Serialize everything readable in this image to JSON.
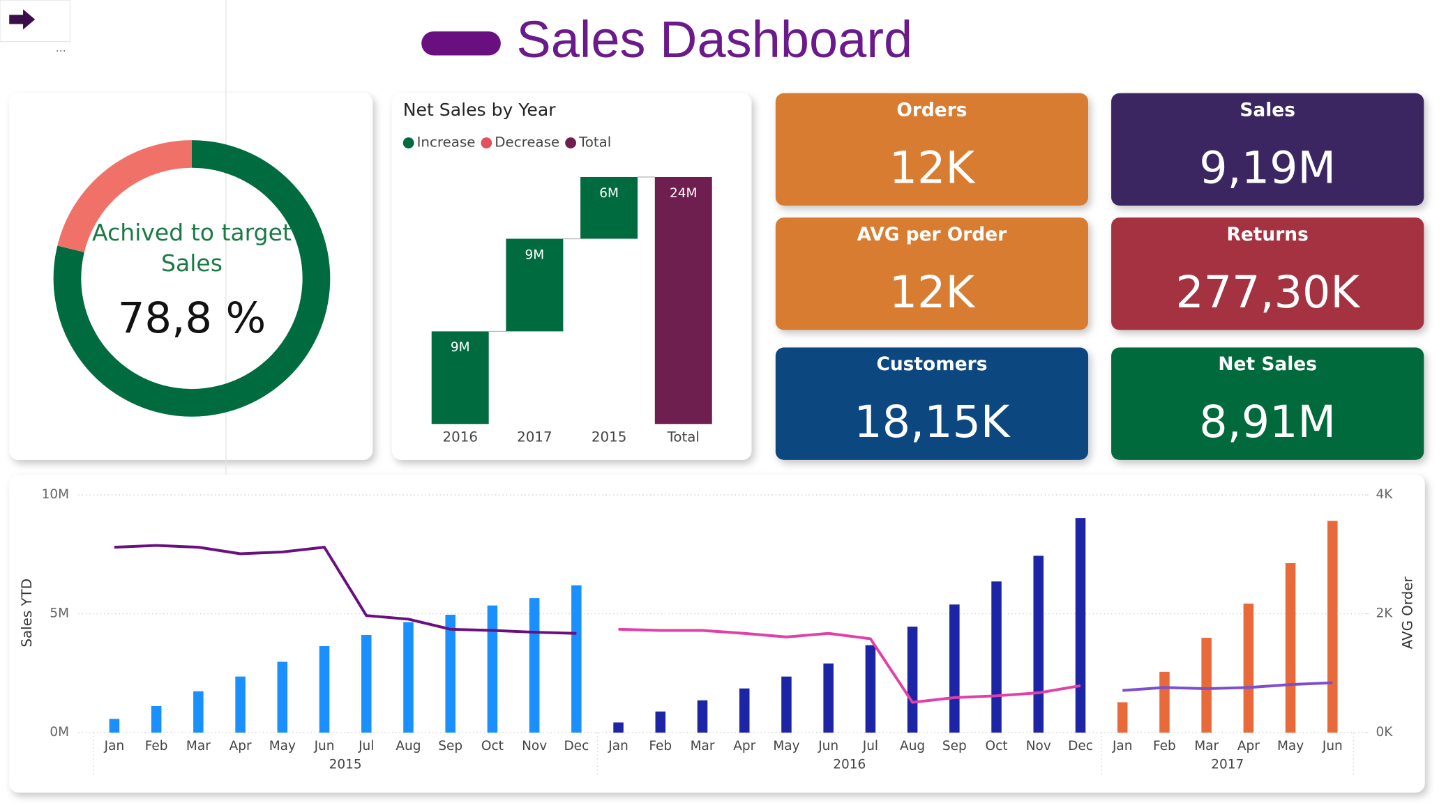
{
  "header": {
    "title": "Sales Dashboard"
  },
  "chart_data": [
    {
      "type": "donut",
      "title": "Achived to target Sales",
      "values": [
        78.8,
        21.2
      ],
      "value_labels": [
        "78,8 %",
        null
      ],
      "colors": [
        "#006b3f",
        "#f07167"
      ]
    },
    {
      "type": "waterfall",
      "title": "Net Sales by Year",
      "legend": [
        {
          "name": "Increase",
          "color": "#006b3f"
        },
        {
          "name": "Decrease",
          "color": "#e0505e"
        },
        {
          "name": "Total",
          "color": "#6e1e4f"
        }
      ],
      "categories": [
        "2016",
        "2017",
        "2015",
        "Total"
      ],
      "values": [
        9,
        9,
        6,
        24
      ],
      "value_labels": [
        "9M",
        "9M",
        "6M",
        "24M"
      ],
      "kinds": [
        "Increase",
        "Increase",
        "Increase",
        "Total"
      ]
    },
    {
      "type": "combo",
      "ylabel": "Sales YTD",
      "y2label": "AVG Order",
      "ylim": [
        0,
        10000000
      ],
      "yticks": [
        {
          "value": 0,
          "label": "0M"
        },
        {
          "value": 5000000,
          "label": "5M"
        },
        {
          "value": 10000000,
          "label": "10M"
        }
      ],
      "y2lim": [
        0,
        4000
      ],
      "y2ticks": [
        {
          "value": 0,
          "label": "0K"
        },
        {
          "value": 2000,
          "label": "2K"
        },
        {
          "value": 4000,
          "label": "4K"
        }
      ],
      "grid": true,
      "groups": [
        {
          "label": "2015",
          "categories": [
            "Jan",
            "Feb",
            "Mar",
            "Apr",
            "May",
            "Jun",
            "Jul",
            "Aug",
            "Sep",
            "Oct",
            "Nov",
            "Dec"
          ],
          "series": [
            {
              "type": "bar",
              "color": "#1a90ff",
              "values": [
                580000,
                1120000,
                1740000,
                2360000,
                2980000,
                3640000,
                4110000,
                4650000,
                4960000,
                5350000,
                5660000,
                6200000
              ]
            },
            {
              "type": "line",
              "axis": "y2",
              "color": "#6a0f7f",
              "values": [
                3120,
                3150,
                3120,
                3010,
                3040,
                3120,
                1970,
                1910,
                1740,
                1720,
                1690,
                1670
              ]
            }
          ]
        },
        {
          "label": "2016",
          "categories": [
            "Jan",
            "Feb",
            "Mar",
            "Apr",
            "May",
            "Jun",
            "Jul",
            "Aug",
            "Sep",
            "Oct",
            "Nov",
            "Dec"
          ],
          "series": [
            {
              "type": "bar",
              "color": "#1c25a6",
              "values": [
                430000,
                890000,
                1360000,
                1860000,
                2360000,
                2910000,
                3680000,
                4460000,
                5390000,
                6360000,
                7440000,
                9030000
              ]
            },
            {
              "type": "line",
              "axis": "y2",
              "color": "#e040a8",
              "values": [
                1740,
                1720,
                1720,
                1670,
                1610,
                1670,
                1580,
                510,
                590,
                620,
                670,
                790
              ]
            }
          ]
        },
        {
          "label": "2017",
          "categories": [
            "Jan",
            "Feb",
            "Mar",
            "Apr",
            "May",
            "Jun"
          ],
          "series": [
            {
              "type": "bar",
              "color": "#e8693a",
              "values": [
                1280000,
                2560000,
                3990000,
                5430000,
                7130000,
                8910000
              ]
            },
            {
              "type": "line",
              "axis": "y2",
              "color": "#7b4fd0",
              "values": [
                710,
                760,
                740,
                760,
                810,
                840
              ]
            }
          ]
        }
      ]
    }
  ],
  "kpis": [
    {
      "label": "Orders",
      "value": "12K",
      "color": "#d87c30"
    },
    {
      "label": "Sales",
      "value": "9,19M",
      "color": "#3b2762"
    },
    {
      "label": "AVG per Order",
      "value": "12K",
      "color": "#d87c30"
    },
    {
      "label": "Returns",
      "value": "277,30K",
      "color": "#a4333f"
    },
    {
      "label": "Customers",
      "value": "18,15K",
      "color": "#0b4680"
    },
    {
      "label": "Net Sales",
      "value": "8,91M",
      "color": "#006b3d"
    }
  ]
}
